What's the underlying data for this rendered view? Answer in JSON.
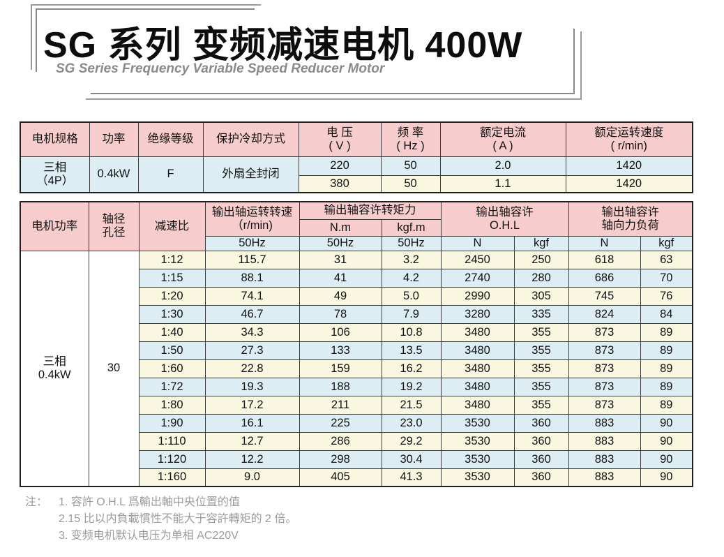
{
  "title": {
    "main": "SG 系列 变频减速电机 400W",
    "subtitle": "SG Series Frequency Variable Speed Reducer Motor"
  },
  "colors": {
    "header_pink": "#f7cccc",
    "subheader_blue": "#dcedf4",
    "row_cream": "#faf7e0",
    "row_blue": "#dcedf4",
    "border": "#1f1f1f",
    "notes_gray": "#9c9c9c"
  },
  "spec_table": {
    "headers": {
      "motor_spec": "电机规格",
      "power": "功率",
      "insulation_class": "绝缘等级",
      "protection_cooling": "保护冷却方式",
      "voltage_line1": "电 压",
      "voltage_line2": "( V )",
      "frequency_line1": "频 率",
      "frequency_line2": "( Hz )",
      "rated_current_line1": "额定电流",
      "rated_current_line2": "( A )",
      "rated_speed_line1": "额定运转速度",
      "rated_speed_line2": "( r/min)"
    },
    "body": {
      "motor_spec_line1": "三相",
      "motor_spec_line2": "（4P）",
      "power": "0.4kW",
      "insulation_class": "F",
      "protection_cooling": "外扇全封闭",
      "rows": [
        {
          "voltage": "220",
          "frequency": "50",
          "current": "2.0",
          "speed": "1420"
        },
        {
          "voltage": "380",
          "frequency": "50",
          "current": "1.1",
          "speed": "1420"
        }
      ]
    }
  },
  "reducer_table": {
    "headers": {
      "motor_power": "电机功率",
      "shaft_line1": "轴径",
      "shaft_line2": "孔径",
      "ratio": "减速比",
      "output_speed_line1": "输出轴运转转速",
      "output_speed_line2": "（r/min)",
      "torque": "输出轴容许转矩力",
      "torque_nm": "N.m",
      "torque_kgfm": "kgf.m",
      "ohl_line1": "输出轴容许",
      "ohl_line2": "O.H.L",
      "axial_line1": "输出轴容许",
      "axial_line2": "轴向力负荷",
      "hz50": "50Hz",
      "n": "N",
      "kgf": "kgf"
    },
    "column_keys": [
      "ratio",
      "output-speed-50hz",
      "torque-nm-50hz",
      "torque-kgfm-50hz",
      "ohl-n",
      "ohl-kgf",
      "axial-n",
      "axial-kgf"
    ],
    "body": {
      "motor_power_line1": "三相",
      "motor_power_line2": "0.4kW",
      "shaft_bore_diameter": "30",
      "rows": [
        [
          "1:12",
          "115.7",
          "31",
          "3.2",
          "2450",
          "250",
          "618",
          "63"
        ],
        [
          "1:15",
          "88.1",
          "41",
          "4.2",
          "2740",
          "280",
          "686",
          "70"
        ],
        [
          "1:20",
          "74.1",
          "49",
          "5.0",
          "2990",
          "305",
          "745",
          "76"
        ],
        [
          "1:30",
          "46.7",
          "78",
          "7.9",
          "3280",
          "335",
          "824",
          "84"
        ],
        [
          "1:40",
          "34.3",
          "106",
          "10.8",
          "3480",
          "355",
          "873",
          "89"
        ],
        [
          "1:50",
          "27.3",
          "133",
          "13.5",
          "3480",
          "355",
          "873",
          "89"
        ],
        [
          "1:60",
          "22.8",
          "159",
          "16.2",
          "3480",
          "355",
          "873",
          "89"
        ],
        [
          "1:72",
          "19.3",
          "188",
          "19.2",
          "3480",
          "355",
          "873",
          "89"
        ],
        [
          "1:80",
          "17.2",
          "211",
          "21.5",
          "3480",
          "355",
          "873",
          "89"
        ],
        [
          "1:90",
          "16.1",
          "225",
          "23.0",
          "3530",
          "360",
          "883",
          "90"
        ],
        [
          "1:110",
          "12.7",
          "286",
          "29.2",
          "3530",
          "360",
          "883",
          "90"
        ],
        [
          "1:120",
          "12.2",
          "298",
          "30.4",
          "3530",
          "360",
          "883",
          "90"
        ],
        [
          "1:160",
          "9.0",
          "405",
          "41.3",
          "3530",
          "360",
          "883",
          "90"
        ]
      ]
    }
  },
  "notes": {
    "label": "注：",
    "items": [
      "1. 容許 O.H.L 爲輸出軸中央位置的值",
      "2.15 比以内負載慣性不能大于容許轉矩的 2 倍。",
      "3. 变频电机默认电压为单相 AC220V"
    ]
  }
}
